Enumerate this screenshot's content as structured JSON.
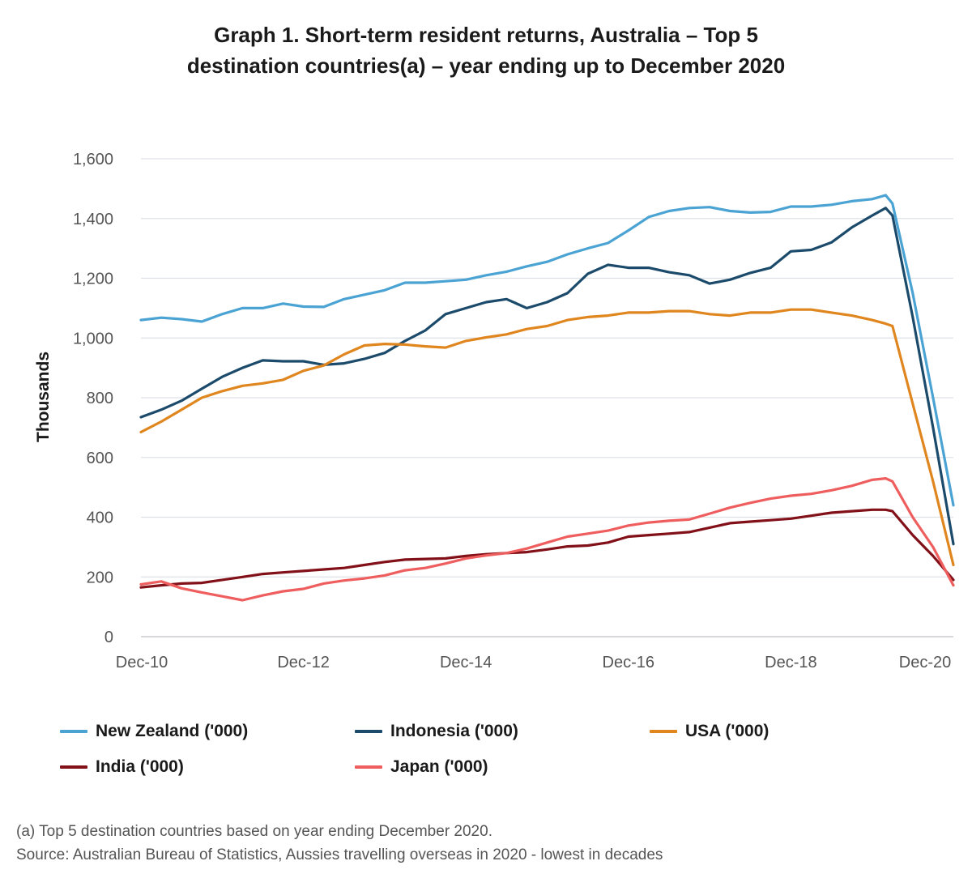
{
  "title_line1": "Graph 1. Short-term resident returns, Australia – Top 5",
  "title_line2": "destination countries(a) – year ending up to December 2020",
  "footnote": "(a) Top 5 destination countries based on year ending December 2020.",
  "source": "Source: Australian Bureau of Statistics, Aussies travelling overseas in 2020 - lowest in decades",
  "chart_data": {
    "type": "line",
    "title": "Graph 1. Short-term resident returns, Australia – Top 5 destination countries(a) – year ending up to December 2020",
    "xlabel": "",
    "ylabel": "Thousands",
    "ylim": [
      0,
      1600
    ],
    "yticks": [
      0,
      200,
      400,
      600,
      800,
      1000,
      1200,
      1400,
      1600
    ],
    "ytick_labels": [
      "0",
      "200",
      "400",
      "600",
      "800",
      "1,000",
      "1,200",
      "1,400",
      "1,600"
    ],
    "xlim": [
      "2010-12",
      "2020-12"
    ],
    "xtick_labels": [
      "Dec-10",
      "Dec-12",
      "Dec-14",
      "Dec-16",
      "Dec-18",
      "Dec-20"
    ],
    "grid": "horizontal",
    "legend_position": "bottom",
    "x": [
      "2010-12",
      "2011-03",
      "2011-06",
      "2011-09",
      "2011-12",
      "2012-03",
      "2012-06",
      "2012-09",
      "2012-12",
      "2013-03",
      "2013-06",
      "2013-09",
      "2013-12",
      "2014-03",
      "2014-06",
      "2014-09",
      "2014-12",
      "2015-03",
      "2015-06",
      "2015-09",
      "2015-12",
      "2016-03",
      "2016-06",
      "2016-09",
      "2016-12",
      "2017-03",
      "2017-06",
      "2017-09",
      "2017-12",
      "2018-03",
      "2018-06",
      "2018-09",
      "2018-12",
      "2019-03",
      "2019-06",
      "2019-09",
      "2019-12",
      "2020-02",
      "2020-03",
      "2020-06",
      "2020-09",
      "2020-12"
    ],
    "series": [
      {
        "name": "New Zealand ('000)",
        "color": "#4aa3d3",
        "values": [
          1060,
          1068,
          1063,
          1055,
          1080,
          1100,
          1100,
          1115,
          1105,
          1104,
          1130,
          1145,
          1160,
          1185,
          1185,
          1190,
          1195,
          1210,
          1222,
          1240,
          1255,
          1280,
          1300,
          1318,
          1360,
          1405,
          1425,
          1435,
          1438,
          1425,
          1420,
          1422,
          1440,
          1440,
          1446,
          1458,
          1465,
          1478,
          1450,
          1150,
          800,
          440
        ]
      },
      {
        "name": "Indonesia ('000)",
        "color": "#1b4a6b",
        "values": [
          735,
          760,
          790,
          830,
          870,
          900,
          925,
          922,
          922,
          910,
          915,
          930,
          950,
          990,
          1025,
          1080,
          1100,
          1120,
          1130,
          1100,
          1120,
          1150,
          1215,
          1245,
          1235,
          1235,
          1220,
          1210,
          1182,
          1195,
          1218,
          1235,
          1290,
          1295,
          1320,
          1370,
          1410,
          1435,
          1410,
          1070,
          700,
          310
        ]
      },
      {
        "name": "USA ('000)",
        "color": "#e0861f",
        "values": [
          685,
          720,
          760,
          800,
          822,
          840,
          848,
          860,
          890,
          908,
          945,
          975,
          980,
          978,
          972,
          968,
          990,
          1002,
          1012,
          1030,
          1040,
          1060,
          1070,
          1075,
          1085,
          1085,
          1090,
          1090,
          1080,
          1075,
          1085,
          1085,
          1095,
          1095,
          1085,
          1075,
          1060,
          1048,
          1040,
          780,
          520,
          240
        ]
      },
      {
        "name": "India ('000)",
        "color": "#821018",
        "values": [
          165,
          172,
          178,
          180,
          190,
          200,
          210,
          215,
          220,
          225,
          230,
          240,
          250,
          258,
          260,
          262,
          270,
          276,
          280,
          283,
          292,
          302,
          305,
          315,
          335,
          340,
          345,
          350,
          365,
          380,
          385,
          390,
          395,
          405,
          415,
          420,
          425,
          425,
          420,
          340,
          270,
          190
        ]
      },
      {
        "name": "Japan ('000)",
        "color": "#ef5e5e",
        "values": [
          175,
          185,
          162,
          148,
          135,
          122,
          138,
          152,
          160,
          178,
          188,
          195,
          205,
          222,
          230,
          245,
          262,
          272,
          280,
          295,
          315,
          335,
          345,
          355,
          372,
          382,
          388,
          392,
          412,
          432,
          448,
          462,
          472,
          478,
          490,
          505,
          525,
          530,
          520,
          400,
          300,
          172
        ]
      }
    ]
  }
}
